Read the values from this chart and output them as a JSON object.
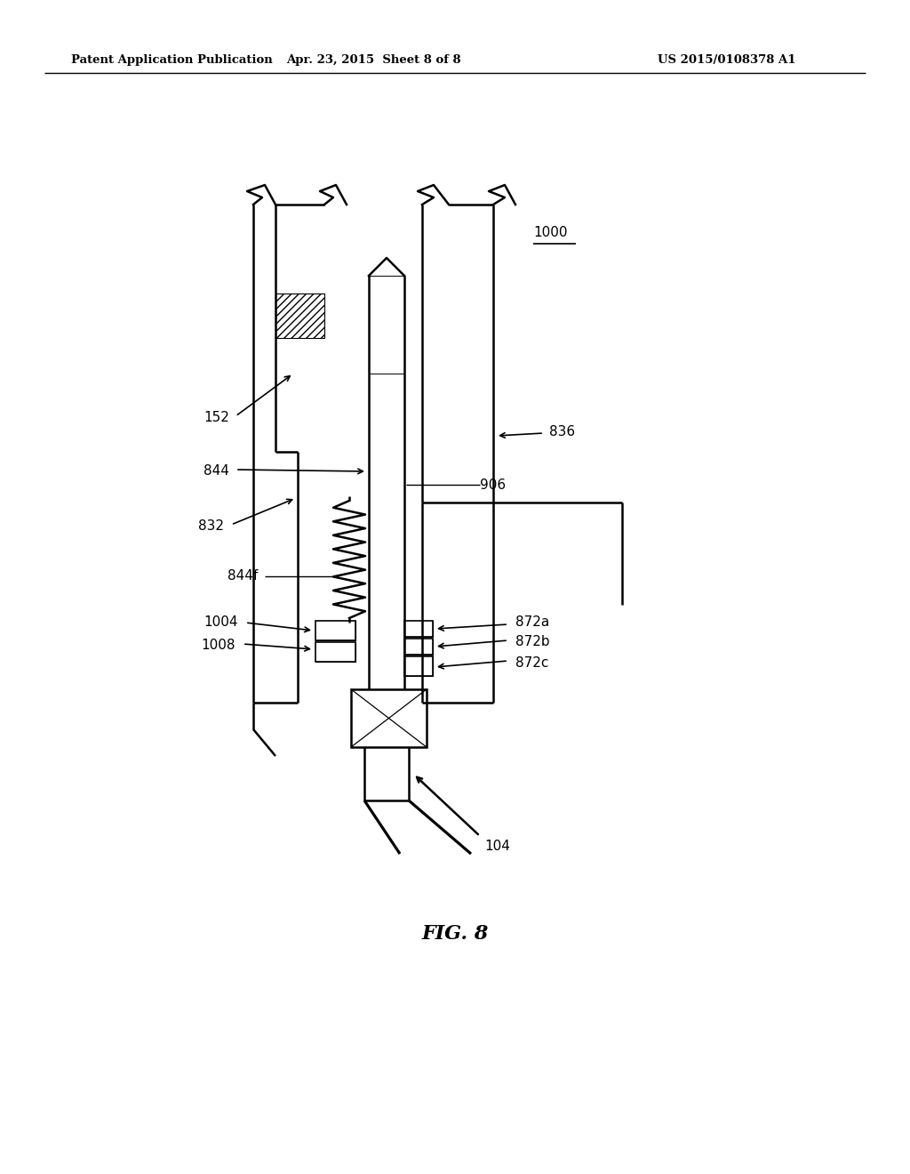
{
  "bg_color": "#ffffff",
  "line_color": "#000000",
  "header_left": "Patent Application Publication",
  "header_mid": "Apr. 23, 2015  Sheet 8 of 8",
  "header_right": "US 2015/0108378 A1",
  "fig_label": "FIG. 8",
  "lw": 1.8
}
